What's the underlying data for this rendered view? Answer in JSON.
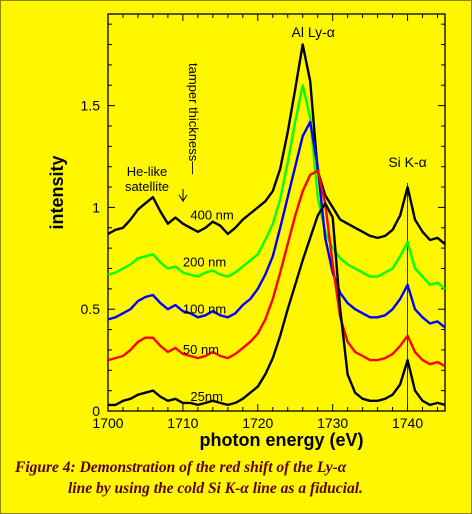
{
  "chart_data": {
    "type": "line",
    "xlabel": "photon energy (eV)",
    "ylabel": "intensity",
    "xlim": [
      1700,
      1745
    ],
    "ylim": [
      0,
      1.95
    ],
    "x_ticks": [
      1700,
      1710,
      1720,
      1730,
      1740
    ],
    "y_ticks": [
      0,
      0.5,
      1,
      1.5
    ],
    "y_tick_labels": [
      "0",
      "0.5",
      "1",
      "1.5"
    ],
    "grid": false,
    "annotations": {
      "lya": "Al Ly-α",
      "sika": "Si K-α",
      "satellite_line1": "He-like",
      "satellite_line2": "satellite",
      "tamper": "tamper thickness—"
    },
    "series": [
      {
        "name": "400 nm",
        "color": "#000000",
        "x": [
          1700,
          1701,
          1702,
          1703,
          1704,
          1705,
          1706,
          1707,
          1708,
          1709,
          1710,
          1711,
          1712,
          1713,
          1714,
          1715,
          1716,
          1717,
          1718,
          1719,
          1720,
          1721,
          1722,
          1723,
          1724,
          1725,
          1726,
          1727,
          1728,
          1729,
          1730,
          1731,
          1732,
          1733,
          1734,
          1735,
          1736,
          1737,
          1738,
          1739,
          1740,
          1741,
          1742,
          1743,
          1744,
          1745
        ],
        "y": [
          0.87,
          0.89,
          0.9,
          0.94,
          0.99,
          1.02,
          1.05,
          0.98,
          0.92,
          0.95,
          0.92,
          0.9,
          0.88,
          0.9,
          0.93,
          0.91,
          0.87,
          0.9,
          0.94,
          0.97,
          1.0,
          1.03,
          1.08,
          1.19,
          1.37,
          1.58,
          1.8,
          1.62,
          1.18,
          1.06,
          1.0,
          0.94,
          0.92,
          0.9,
          0.88,
          0.86,
          0.85,
          0.86,
          0.89,
          0.96,
          1.1,
          0.94,
          0.88,
          0.84,
          0.85,
          0.82
        ]
      },
      {
        "name": "200 nm",
        "color": "#00ff00",
        "x": [
          1700,
          1701,
          1702,
          1703,
          1704,
          1705,
          1706,
          1707,
          1708,
          1709,
          1710,
          1711,
          1712,
          1713,
          1714,
          1715,
          1716,
          1717,
          1718,
          1719,
          1720,
          1721,
          1722,
          1723,
          1724,
          1725,
          1726,
          1727,
          1728,
          1729,
          1730,
          1731,
          1732,
          1733,
          1734,
          1735,
          1736,
          1737,
          1738,
          1739,
          1740,
          1741,
          1742,
          1743,
          1744,
          1745
        ],
        "y": [
          0.67,
          0.68,
          0.7,
          0.72,
          0.75,
          0.76,
          0.77,
          0.73,
          0.7,
          0.71,
          0.68,
          0.67,
          0.66,
          0.68,
          0.69,
          0.67,
          0.66,
          0.68,
          0.71,
          0.74,
          0.77,
          0.84,
          0.92,
          1.04,
          1.22,
          1.42,
          1.6,
          1.44,
          1.05,
          0.88,
          0.8,
          0.75,
          0.72,
          0.7,
          0.68,
          0.66,
          0.66,
          0.68,
          0.7,
          0.76,
          0.83,
          0.7,
          0.66,
          0.62,
          0.63,
          0.6
        ]
      },
      {
        "name": "100 nm",
        "color": "#0000ff",
        "x": [
          1700,
          1701,
          1702,
          1703,
          1704,
          1705,
          1706,
          1707,
          1708,
          1709,
          1710,
          1711,
          1712,
          1713,
          1714,
          1715,
          1716,
          1717,
          1718,
          1719,
          1720,
          1721,
          1722,
          1723,
          1724,
          1725,
          1726,
          1727,
          1728,
          1729,
          1730,
          1731,
          1732,
          1733,
          1734,
          1735,
          1736,
          1737,
          1738,
          1739,
          1740,
          1741,
          1742,
          1743,
          1744,
          1745
        ],
        "y": [
          0.45,
          0.46,
          0.48,
          0.5,
          0.54,
          0.56,
          0.57,
          0.53,
          0.5,
          0.52,
          0.49,
          0.48,
          0.46,
          0.47,
          0.49,
          0.47,
          0.46,
          0.48,
          0.52,
          0.55,
          0.6,
          0.67,
          0.76,
          0.9,
          1.05,
          1.2,
          1.35,
          1.42,
          1.2,
          0.85,
          0.68,
          0.58,
          0.53,
          0.5,
          0.48,
          0.46,
          0.46,
          0.47,
          0.5,
          0.55,
          0.62,
          0.5,
          0.46,
          0.43,
          0.44,
          0.41
        ]
      },
      {
        "name": "50 nm",
        "color": "#ff0000",
        "x": [
          1700,
          1701,
          1702,
          1703,
          1704,
          1705,
          1706,
          1707,
          1708,
          1709,
          1710,
          1711,
          1712,
          1713,
          1714,
          1715,
          1716,
          1717,
          1718,
          1719,
          1720,
          1721,
          1722,
          1723,
          1724,
          1725,
          1726,
          1727,
          1728,
          1729,
          1730,
          1731,
          1732,
          1733,
          1734,
          1735,
          1736,
          1737,
          1738,
          1739,
          1740,
          1741,
          1742,
          1743,
          1744,
          1745
        ],
        "y": [
          0.25,
          0.26,
          0.27,
          0.3,
          0.34,
          0.36,
          0.36,
          0.32,
          0.29,
          0.31,
          0.28,
          0.27,
          0.26,
          0.27,
          0.29,
          0.27,
          0.26,
          0.28,
          0.31,
          0.34,
          0.38,
          0.45,
          0.55,
          0.68,
          0.82,
          0.96,
          1.08,
          1.16,
          1.18,
          1.02,
          0.72,
          0.46,
          0.34,
          0.29,
          0.27,
          0.25,
          0.25,
          0.26,
          0.28,
          0.32,
          0.37,
          0.29,
          0.25,
          0.23,
          0.24,
          0.22
        ]
      },
      {
        "name": "25nm",
        "color": "#000000",
        "x": [
          1700,
          1701,
          1702,
          1703,
          1704,
          1705,
          1706,
          1707,
          1708,
          1709,
          1710,
          1711,
          1712,
          1713,
          1714,
          1715,
          1716,
          1717,
          1718,
          1719,
          1720,
          1721,
          1722,
          1723,
          1724,
          1725,
          1726,
          1727,
          1728,
          1729,
          1730,
          1731,
          1732,
          1733,
          1734,
          1735,
          1736,
          1737,
          1738,
          1739,
          1740,
          1741,
          1742,
          1743,
          1744,
          1745
        ],
        "y": [
          0.03,
          0.03,
          0.05,
          0.06,
          0.08,
          0.09,
          0.1,
          0.07,
          0.05,
          0.06,
          0.04,
          0.04,
          0.03,
          0.04,
          0.05,
          0.04,
          0.03,
          0.04,
          0.06,
          0.09,
          0.12,
          0.18,
          0.26,
          0.37,
          0.5,
          0.62,
          0.74,
          0.85,
          0.96,
          1.02,
          0.95,
          0.5,
          0.18,
          0.09,
          0.06,
          0.05,
          0.05,
          0.06,
          0.08,
          0.13,
          0.25,
          0.1,
          0.05,
          0.03,
          0.04,
          0.03
        ]
      }
    ],
    "curve_labels": [
      "400 nm",
      "200 nm",
      "100 nm",
      "50 nm",
      "25nm"
    ]
  },
  "caption": {
    "line1": "Figure 4:  Demonstration of the red shift of the Ly-α",
    "line2": "line by using the cold Si K-α line as a fiducial."
  }
}
